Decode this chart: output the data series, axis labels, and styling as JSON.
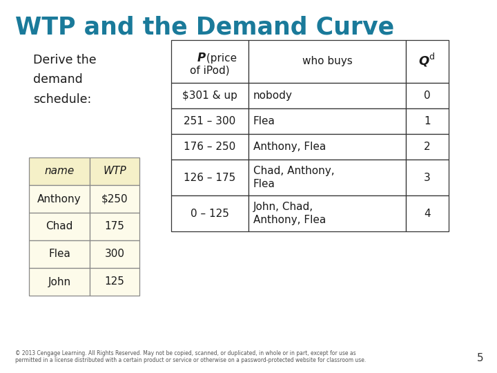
{
  "title": "WTP and the Demand Curve",
  "title_color": "#1a7a9a",
  "subtitle": "Derive the\ndemand\nschedule:",
  "bg_color": "#ffffff",
  "left_table": {
    "header": [
      "name",
      "WTP"
    ],
    "rows": [
      [
        "Anthony",
        "$250"
      ],
      [
        "Chad",
        "175"
      ],
      [
        "Flea",
        "300"
      ],
      [
        "John",
        "125"
      ]
    ],
    "header_bg": "#f5f0c8",
    "row_bg": "#fdfbea",
    "border_color": "#888888"
  },
  "right_table": {
    "rows": [
      [
        "$301 & up",
        "nobody",
        "0"
      ],
      [
        "251 – 300",
        "Flea",
        "1"
      ],
      [
        "176 – 250",
        "Anthony, Flea",
        "2"
      ],
      [
        "126 – 175",
        "Chad, Anthony,\nFlea",
        "3"
      ],
      [
        "0 – 125",
        "John, Chad,\nAnthony, Flea",
        "4"
      ]
    ],
    "border_color": "#333333"
  },
  "footer": "© 2013 Cengage Learning. All Rights Reserved. May not be copied, scanned, or duplicated, in whole or in part, except for use as\npermitted in a license distributed with a certain product or service or otherwise on a password-protected website for classroom use.",
  "page_number": "5"
}
